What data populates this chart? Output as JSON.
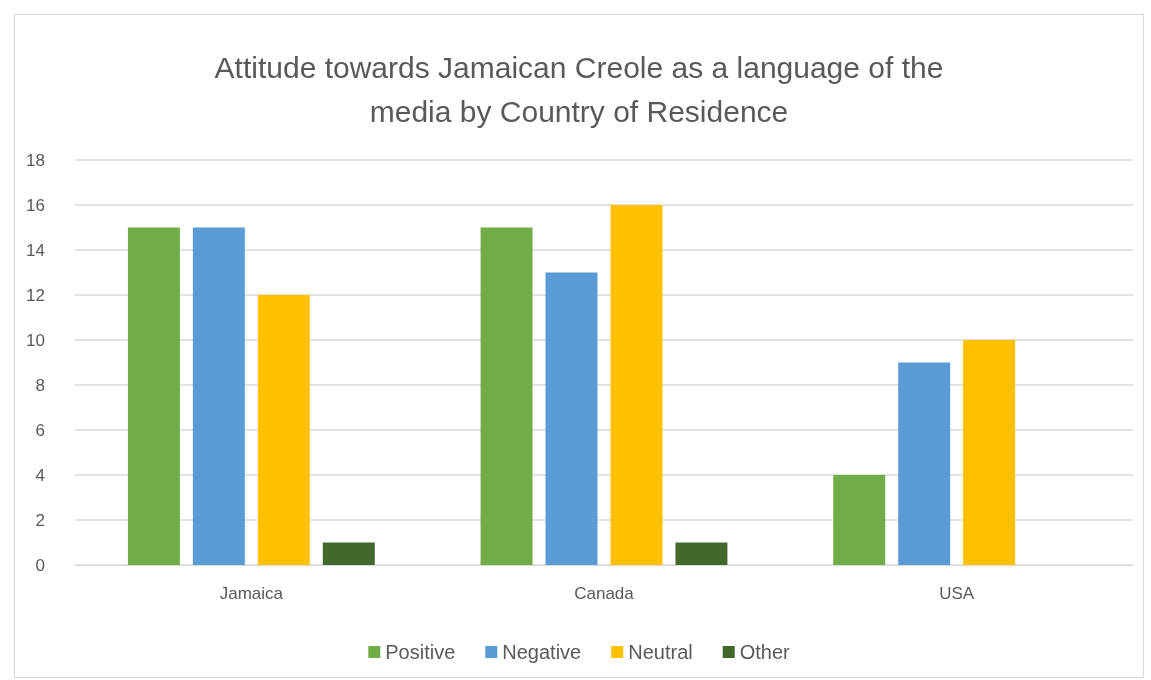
{
  "chart_data": {
    "type": "bar",
    "title": "Attitude towards Jamaican Creole as a language of the\nmedia by Country of Residence",
    "categories": [
      "Jamaica",
      "Canada",
      "USA"
    ],
    "series": [
      {
        "name": "Positive",
        "color": "#70ad47",
        "values": [
          15,
          15,
          4
        ]
      },
      {
        "name": "Negative",
        "color": "#5b9bd5",
        "values": [
          15,
          13,
          9
        ]
      },
      {
        "name": "Neutral",
        "color": "#ffc000",
        "values": [
          12,
          16,
          10
        ]
      },
      {
        "name": "Other",
        "color": "#43682b",
        "values": [
          1,
          1,
          null
        ]
      }
    ],
    "ylim": [
      0,
      18
    ],
    "yticks": [
      0,
      2,
      4,
      6,
      8,
      10,
      12,
      14,
      16,
      18
    ],
    "grid": "y",
    "legend": "bottom"
  }
}
